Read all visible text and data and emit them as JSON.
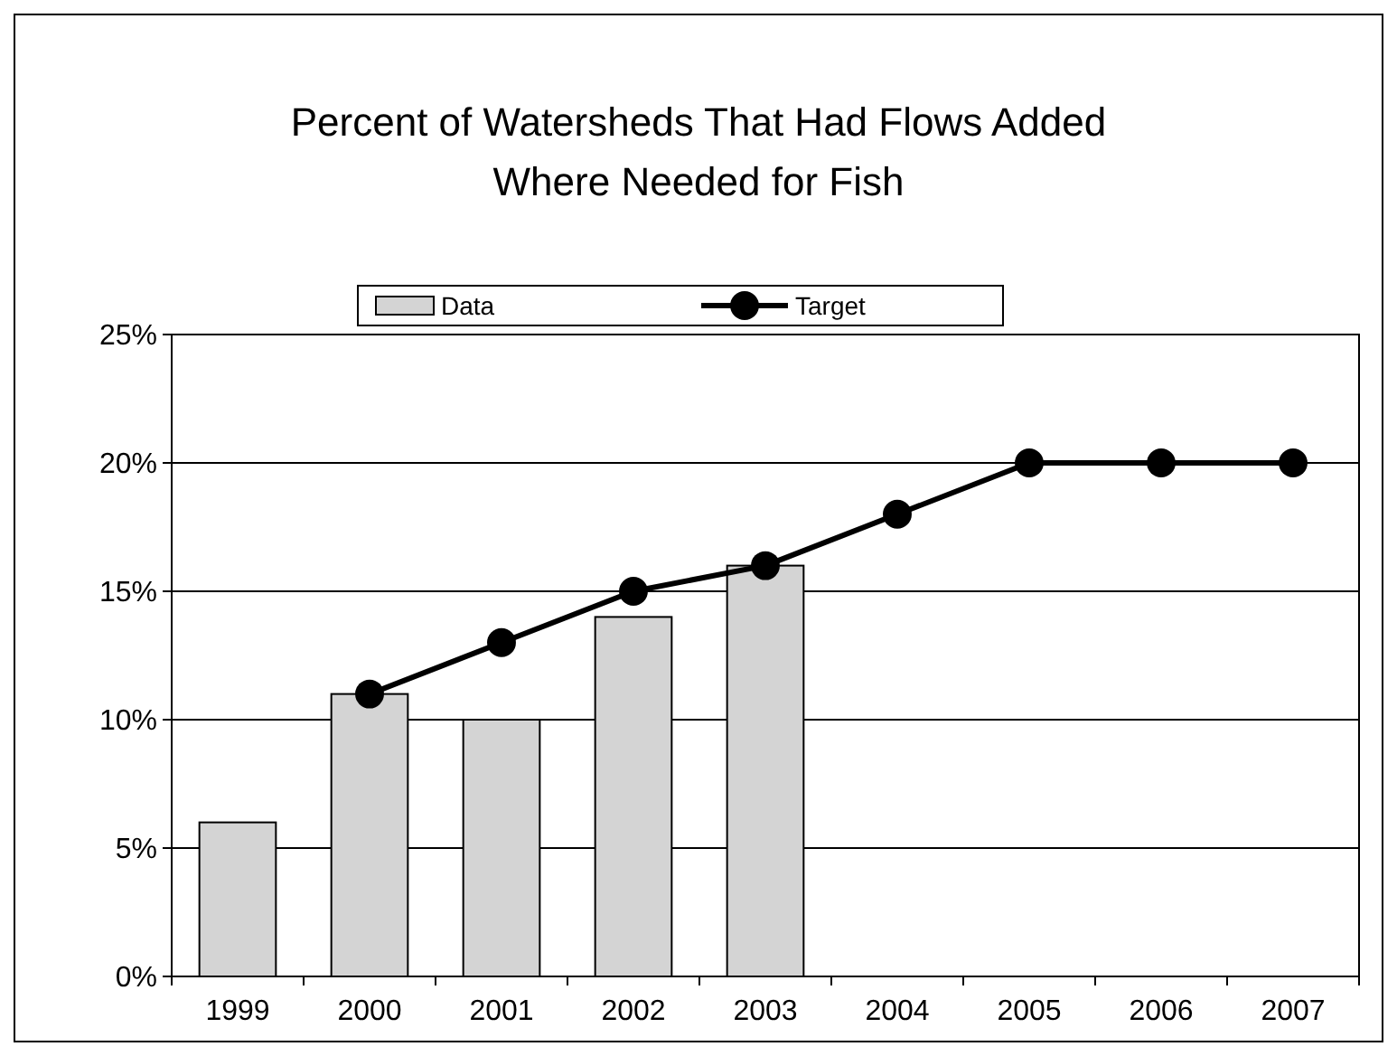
{
  "chart_data": {
    "type": "bar",
    "title": "Percent of Watersheds That Had Flows Added Where Needed for Fish",
    "categories": [
      "1999",
      "2000",
      "2001",
      "2002",
      "2003",
      "2004",
      "2005",
      "2006",
      "2007"
    ],
    "series": [
      {
        "name": "Data",
        "color": "#d4d4d4",
        "values": [
          6,
          11,
          10,
          14,
          16,
          null,
          null,
          null,
          null
        ]
      },
      {
        "name": "Target",
        "type": "line",
        "color": "#000000",
        "values": [
          null,
          11,
          13,
          15,
          16,
          18,
          20,
          20,
          20
        ]
      }
    ],
    "ylim": [
      0,
      25
    ],
    "yticks": [
      {
        "value": 0,
        "label": "0%"
      },
      {
        "value": 5,
        "label": "5%"
      },
      {
        "value": 10,
        "label": "10%"
      },
      {
        "value": 15,
        "label": "15%"
      },
      {
        "value": 20,
        "label": "20%"
      },
      {
        "value": 25,
        "label": "25%"
      }
    ],
    "grid": "y",
    "legend": "top",
    "marker": "circle",
    "line_style": "solid"
  }
}
